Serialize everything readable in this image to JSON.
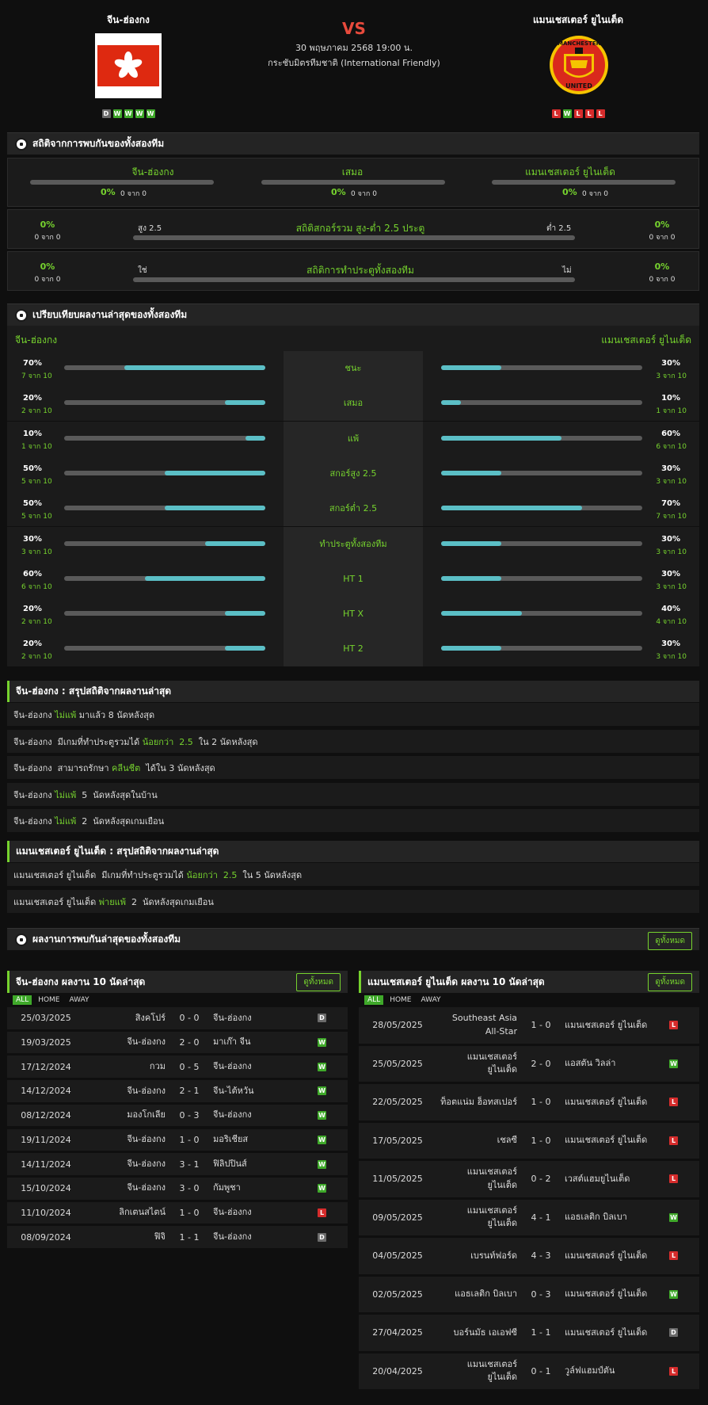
{
  "header": {
    "home_team": "จีน-ฮ่องกง",
    "away_team": "แมนเชสเตอร์ ยูไนเต็ด",
    "vs": "VS",
    "datetime": "30 พฤษภาคม 2568 19:00 น.",
    "competition": "กระชับมิตรทีมชาติ (International Friendly)",
    "home_form": [
      "D",
      "W",
      "W",
      "W",
      "W"
    ],
    "away_form": [
      "L",
      "W",
      "L",
      "L",
      "L"
    ],
    "away_logo_text_top": "MANCHESTER",
    "away_logo_text_bottom": "UNITED"
  },
  "h2h": {
    "title": "สถิติจากการพบกันของทั้งสองทีม",
    "cols": [
      {
        "label": "จีน-ฮ่องกง",
        "pct": "0%",
        "sub": "0 จาก 0"
      },
      {
        "label": "เสมอ",
        "pct": "0%",
        "sub": "0 จาก 0"
      },
      {
        "label": "แมนเชสเตอร์ ยูไนเต็ด",
        "pct": "0%",
        "sub": "0 จาก 0"
      }
    ],
    "ou": {
      "title": "สถิติสกอร์รวม สูง-ต่ำ 2.5 ประตู",
      "left_label": "สูง 2.5",
      "right_label": "ต่ำ 2.5",
      "left_pct": "0%",
      "left_sub": "0 จาก 0",
      "right_pct": "0%",
      "right_sub": "0 จาก 0"
    },
    "btts": {
      "title": "สถิติการทำประตูทั้งสองทีม",
      "left_label": "ใช่",
      "right_label": "ไม่",
      "left_pct": "0%",
      "left_sub": "0 จาก 0",
      "right_pct": "0%",
      "right_sub": "0 จาก 0"
    }
  },
  "compare": {
    "title": "เปรียบเทียบผลงานล่าสุดของทั้งสองทีม",
    "home_label": "จีน-ฮ่องกง",
    "away_label": "แมนเชสเตอร์ ยูไนเต็ด",
    "rows": [
      {
        "label": "ชนะ",
        "h_pct": "70%",
        "h_sub": "7 จาก 10",
        "h_val": 0.7,
        "a_pct": "30%",
        "a_sub": "3 จาก 10",
        "a_val": 0.3
      },
      {
        "label": "เสมอ",
        "h_pct": "20%",
        "h_sub": "2 จาก 10",
        "h_val": 0.2,
        "a_pct": "10%",
        "a_sub": "1 จาก 10",
        "a_val": 0.1
      },
      {
        "label": "แพ้",
        "h_pct": "10%",
        "h_sub": "1 จาก 10",
        "h_val": 0.1,
        "a_pct": "60%",
        "a_sub": "6 จาก 10",
        "a_val": 0.6
      },
      {
        "label": "สกอร์สูง 2.5",
        "h_pct": "50%",
        "h_sub": "5 จาก 10",
        "h_val": 0.5,
        "a_pct": "30%",
        "a_sub": "3 จาก 10",
        "a_val": 0.3
      },
      {
        "label": "สกอร์ต่ำ 2.5",
        "h_pct": "50%",
        "h_sub": "5 จาก 10",
        "h_val": 0.5,
        "a_pct": "70%",
        "a_sub": "7 จาก 10",
        "a_val": 0.7
      },
      {
        "label": "ทำประตูทั้งสองทีม",
        "h_pct": "30%",
        "h_sub": "3 จาก 10",
        "h_val": 0.3,
        "a_pct": "30%",
        "a_sub": "3 จาก 10",
        "a_val": 0.3
      },
      {
        "label": "HT 1",
        "h_pct": "60%",
        "h_sub": "6 จาก 10",
        "h_val": 0.6,
        "a_pct": "30%",
        "a_sub": "3 จาก 10",
        "a_val": 0.3
      },
      {
        "label": "HT X",
        "h_pct": "20%",
        "h_sub": "2 จาก 10",
        "h_val": 0.2,
        "a_pct": "40%",
        "a_sub": "4 จาก 10",
        "a_val": 0.4
      },
      {
        "label": "HT 2",
        "h_pct": "20%",
        "h_sub": "2 จาก 10",
        "h_val": 0.2,
        "a_pct": "30%",
        "a_sub": "3 จาก 10",
        "a_val": 0.3
      }
    ]
  },
  "home_summary": {
    "title": "จีน-ฮ่องกง : สรุปสถิติจากผลงานล่าสุด",
    "rows": [
      [
        {
          "t": "จีน-ฮ่องกง "
        },
        {
          "t": "ไม่แพ้",
          "g": true
        },
        {
          "t": " มาแล้ว 8 นัดหลังสุด"
        }
      ],
      [
        {
          "t": "จีน-ฮ่องกง  มีเกมที่ทำประตูรวมได้ "
        },
        {
          "t": "น้อยกว่า  2.5",
          "g": true
        },
        {
          "t": "  ใน 2 นัดหลังสุด"
        }
      ],
      [
        {
          "t": "จีน-ฮ่องกง  สามารถรักษา "
        },
        {
          "t": "คลีนชีต",
          "g": true
        },
        {
          "t": "  ได้ใน 3 นัดหลังสุด"
        }
      ],
      [
        {
          "t": "จีน-ฮ่องกง "
        },
        {
          "t": "ไม่แพ้",
          "g": true
        },
        {
          "t": "  5  นัดหลังสุดในบ้าน"
        }
      ],
      [
        {
          "t": "จีน-ฮ่องกง "
        },
        {
          "t": "ไม่แพ้",
          "g": true
        },
        {
          "t": "  2  นัดหลังสุดเกมเยือน"
        }
      ]
    ]
  },
  "away_summary": {
    "title": "แมนเชสเตอร์ ยูไนเต็ด : สรุปสถิติจากผลงานล่าสุด",
    "rows": [
      [
        {
          "t": "แมนเชสเตอร์ ยูไนเต็ด  มีเกมที่ทำประตูรวมได้ "
        },
        {
          "t": "น้อยกว่า  2.5",
          "g": true
        },
        {
          "t": "  ใน 5 นัดหลังสุด"
        }
      ],
      [
        {
          "t": "แมนเชสเตอร์ ยูไนเต็ด "
        },
        {
          "t": "พ่ายแพ้",
          "g": true
        },
        {
          "t": "  2  นัดหลังสุดเกมเยือน"
        }
      ]
    ]
  },
  "recent": {
    "title": "ผลงานการพบกันล่าสุดของทั้งสองทีม",
    "view_all": "ดูทั้งหมด",
    "tabs": [
      "ALL",
      "HOME",
      "AWAY"
    ],
    "home_panel": {
      "title": "จีน-ฮ่องกง ผลงาน 10 นัดล่าสุด",
      "matches": [
        {
          "date": "25/03/2025",
          "home": "สิงคโปร์",
          "score": "0 - 0",
          "away": "จีน-ฮ่องกง",
          "res": "D"
        },
        {
          "date": "19/03/2025",
          "home": "จีน-ฮ่องกง",
          "score": "2 - 0",
          "away": "มาเก๊า จีน",
          "res": "W"
        },
        {
          "date": "17/12/2024",
          "home": "กวม",
          "score": "0 - 5",
          "away": "จีน-ฮ่องกง",
          "res": "W"
        },
        {
          "date": "14/12/2024",
          "home": "จีน-ฮ่องกง",
          "score": "2 - 1",
          "away": "จีน-ไต้หวัน",
          "res": "W"
        },
        {
          "date": "08/12/2024",
          "home": "มองโกเลีย",
          "score": "0 - 3",
          "away": "จีน-ฮ่องกง",
          "res": "W"
        },
        {
          "date": "19/11/2024",
          "home": "จีน-ฮ่องกง",
          "score": "1 - 0",
          "away": "มอริเชียส",
          "res": "W"
        },
        {
          "date": "14/11/2024",
          "home": "จีน-ฮ่องกง",
          "score": "3 - 1",
          "away": "ฟิลิปปินส์",
          "res": "W"
        },
        {
          "date": "15/10/2024",
          "home": "จีน-ฮ่องกง",
          "score": "3 - 0",
          "away": "กัมพูชา",
          "res": "W"
        },
        {
          "date": "11/10/2024",
          "home": "ลิกเตนสไตน์",
          "score": "1 - 0",
          "away": "จีน-ฮ่องกง",
          "res": "L"
        },
        {
          "date": "08/09/2024",
          "home": "ฟิจิ",
          "score": "1 - 1",
          "away": "จีน-ฮ่องกง",
          "res": "D"
        }
      ]
    },
    "away_panel": {
      "title": "แมนเชสเตอร์ ยูไนเต็ด ผลงาน 10 นัดล่าสุด",
      "matches": [
        {
          "date": "28/05/2025",
          "home": "Southeast Asia All-Star",
          "score": "1 - 0",
          "away": "แมนเชสเตอร์ ยูไนเต็ด",
          "res": "L"
        },
        {
          "date": "25/05/2025",
          "home": "แมนเชสเตอร์ ยูไนเต็ด",
          "score": "2 - 0",
          "away": "แอสตัน วิลล่า",
          "res": "W"
        },
        {
          "date": "22/05/2025",
          "home": "ท็อตแน่ม ฮ็อทสเปอร์",
          "score": "1 - 0",
          "away": "แมนเชสเตอร์ ยูไนเต็ด",
          "res": "L"
        },
        {
          "date": "17/05/2025",
          "home": "เชลซี",
          "score": "1 - 0",
          "away": "แมนเชสเตอร์ ยูไนเต็ด",
          "res": "L"
        },
        {
          "date": "11/05/2025",
          "home": "แมนเชสเตอร์ ยูไนเต็ด",
          "score": "0 - 2",
          "away": "เวสต์แฮมยูไนเต็ด",
          "res": "L"
        },
        {
          "date": "09/05/2025",
          "home": "แมนเชสเตอร์ ยูไนเต็ด",
          "score": "4 - 1",
          "away": "แอธเลติก บิลเบา",
          "res": "W"
        },
        {
          "date": "04/05/2025",
          "home": "เบรนท์ฟอร์ด",
          "score": "4 - 3",
          "away": "แมนเชสเตอร์ ยูไนเต็ด",
          "res": "L"
        },
        {
          "date": "02/05/2025",
          "home": "แอธเลติก บิลเบา",
          "score": "0 - 3",
          "away": "แมนเชสเตอร์ ยูไนเต็ด",
          "res": "W"
        },
        {
          "date": "27/04/2025",
          "home": "บอร์นมัธ เอเอฟซี",
          "score": "1 - 1",
          "away": "แมนเชสเตอร์ ยูไนเต็ด",
          "res": "D"
        },
        {
          "date": "20/04/2025",
          "home": "แมนเชสเตอร์ ยูไนเต็ด",
          "score": "0 - 1",
          "away": "วูล์ฟแฮมป์ตัน",
          "res": "L"
        }
      ]
    }
  }
}
